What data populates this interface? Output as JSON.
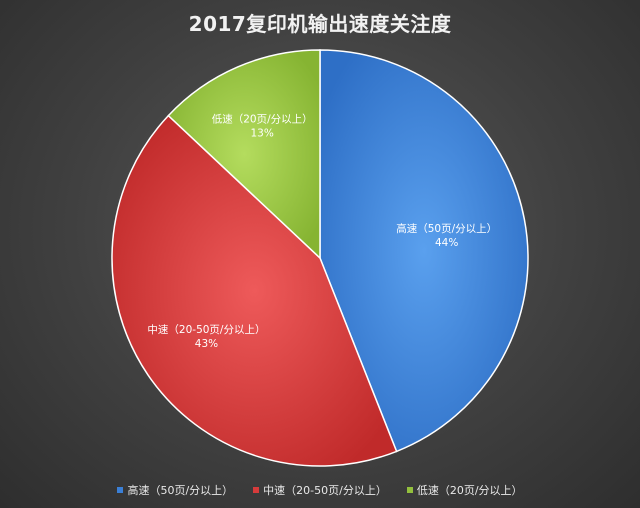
{
  "chart_data": {
    "type": "pie",
    "title": "2017复印机输出速度关注度",
    "slices": [
      {
        "label": "高速（50页/分以上）",
        "value": 44,
        "pct_label": "44%",
        "color": "#3a7fd6"
      },
      {
        "label": "中速（20-50页/分以上）",
        "value": 43,
        "pct_label": "43%",
        "color": "#d63b3b"
      },
      {
        "label": "低速（20页/分以上）",
        "value": 13,
        "pct_label": "13%",
        "color": "#93c03d"
      }
    ],
    "legend_position": "bottom"
  }
}
